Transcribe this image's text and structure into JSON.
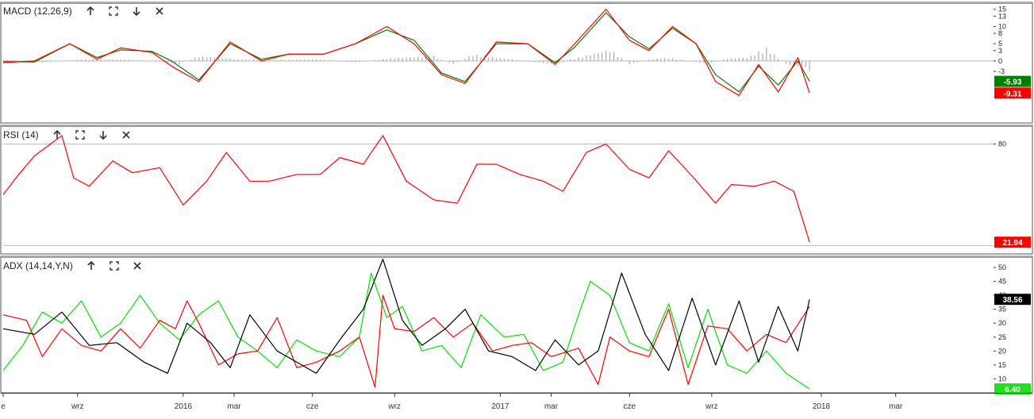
{
  "colors": {
    "macd": "#ff0000",
    "signal": "#008000",
    "histogram": "#aaaaaa",
    "rsi": "#ff0000",
    "adx": "#000000",
    "plus_di": "#ff0000",
    "minus_di": "#00e000",
    "pane_border": "#555555",
    "guide": "#bbbbbb"
  },
  "toolbar_icons": [
    "arrow-up-icon",
    "expand-icon",
    "arrow-down-icon",
    "close-icon"
  ],
  "x_axis": {
    "ticks": [
      {
        "label": "e",
        "t": 0
      },
      {
        "label": "wrz",
        "t": 19
      },
      {
        "label": "2016",
        "t": 46
      },
      {
        "label": "mar",
        "t": 59
      },
      {
        "label": "cze",
        "t": 79
      },
      {
        "label": "wrz",
        "t": 100
      },
      {
        "label": "2017",
        "t": 127
      },
      {
        "label": "mar",
        "t": 140
      },
      {
        "label": "cze",
        "t": 160
      },
      {
        "label": "wrz",
        "t": 181
      },
      {
        "label": "2018",
        "t": 209
      },
      {
        "label": "mar",
        "t": 228
      }
    ],
    "range": [
      0,
      253
    ],
    "last_bar": 206
  },
  "panes": [
    {
      "id": "macd",
      "title": "MACD (12,26,9)",
      "y_range": [
        -18,
        17
      ],
      "y_ticks": [
        15,
        13,
        10,
        8,
        5,
        3,
        0,
        -3
      ],
      "baseline": 0,
      "badges": [
        {
          "value": "-5.93",
          "color": "#008000",
          "y": -5.93
        },
        {
          "value": "-9.31",
          "color": "#ff0000",
          "y": -9.31
        }
      ]
    },
    {
      "id": "rsi",
      "title": "RSI (14)",
      "y_range": [
        15,
        91
      ],
      "y_ticks": [
        80
      ],
      "guides": [
        80,
        20
      ],
      "badges": [
        {
          "value": "21.94",
          "color": "#ff0000",
          "y": 21.94
        }
      ]
    },
    {
      "id": "adx",
      "title": "ADX (14,14,Y,N)",
      "y_range": [
        5,
        54
      ],
      "y_ticks": [
        50,
        45,
        40,
        35,
        30,
        25,
        20,
        15,
        10
      ],
      "badges": [
        {
          "value": "38.56",
          "color": "#000000",
          "y": 38.56
        },
        {
          "value": "6.40",
          "color": "#22dd22",
          "y": 6.4
        }
      ]
    }
  ],
  "chart_data": [
    {
      "type": "line",
      "title": "MACD (12,26,9)",
      "series": [
        {
          "name": "",
          "x": [
            0,
            8,
            17,
            24,
            30,
            38,
            43,
            50,
            58,
            66,
            73,
            82,
            90,
            98,
            105,
            112,
            118,
            126,
            134,
            141,
            146,
            154,
            160,
            165,
            171,
            177,
            182,
            188,
            193,
            198,
            203,
            206
          ],
          "y": [
            -0.5,
            0,
            5,
            0.5,
            3.8,
            2.5,
            -1.5,
            -6,
            5.5,
            0,
            2,
            2,
            5,
            10,
            5,
            -4,
            -6.5,
            5.5,
            5,
            -1,
            5,
            15,
            6,
            3,
            10,
            5,
            -6,
            -10,
            -1,
            -9,
            1,
            -9.31
          ]
        },
        {
          "name": "",
          "x": [
            0,
            8,
            17,
            24,
            30,
            38,
            43,
            50,
            58,
            66,
            73,
            82,
            90,
            98,
            105,
            112,
            118,
            126,
            134,
            141,
            146,
            154,
            160,
            165,
            171,
            177,
            182,
            188,
            193,
            198,
            203,
            206
          ],
          "y": [
            -0.2,
            -0.3,
            5,
            1,
            3.2,
            2.8,
            0,
            -5.5,
            5,
            0.5,
            2,
            2,
            5,
            9,
            6,
            -3.5,
            -6,
            5,
            5,
            -0.5,
            4,
            14,
            7,
            3.5,
            9.5,
            5,
            -4,
            -9,
            -1.5,
            -7,
            0,
            -5.93
          ]
        },
        {
          "name": "",
          "x": [
            0,
            10,
            20,
            30,
            40,
            45,
            50,
            60,
            70,
            80,
            90,
            100,
            110,
            115,
            120,
            130,
            140,
            150,
            155,
            160,
            165,
            170,
            180,
            185,
            190,
            195,
            200,
            206
          ],
          "y": [
            0.5,
            -0.5,
            0.5,
            0.5,
            -0.3,
            -1,
            1.5,
            0.5,
            0.3,
            0.5,
            -0.5,
            1,
            1.5,
            -1,
            2,
            0.5,
            -1,
            2,
            3.5,
            -1,
            0.5,
            1,
            -1,
            0.8,
            1,
            4,
            -1,
            -3
          ]
        }
      ]
    },
    {
      "type": "line",
      "title": "RSI (14)",
      "series": [
        {
          "name": "",
          "x": [
            0,
            4,
            8,
            15,
            18,
            22,
            28,
            33,
            40,
            46,
            52,
            57,
            63,
            68,
            75,
            81,
            86,
            92,
            97,
            103,
            110,
            116,
            121,
            126,
            132,
            138,
            143,
            149,
            154,
            160,
            165,
            170,
            176,
            182,
            186,
            192,
            197,
            202,
            206
          ],
          "y": [
            50,
            62,
            73,
            85,
            60,
            55,
            70,
            63,
            66,
            44,
            58,
            75,
            58,
            58,
            62,
            62,
            72,
            68,
            85,
            58,
            47,
            45,
            68,
            68,
            62,
            58,
            52,
            75,
            80,
            65,
            60,
            76,
            61,
            45,
            56,
            55,
            58,
            52,
            21.94
          ]
        }
      ]
    },
    {
      "type": "line",
      "title": "ADX (14,14,Y,N)",
      "series": [
        {
          "name": "",
          "x": [
            0,
            8,
            15,
            22,
            29,
            36,
            42,
            47,
            53,
            58,
            63,
            70,
            75,
            80,
            86,
            92,
            97,
            102,
            107,
            113,
            118,
            124,
            130,
            136,
            141,
            147,
            152,
            158,
            164,
            170,
            176,
            182,
            188,
            193,
            198,
            203,
            206
          ],
          "y": [
            28,
            26,
            34,
            22,
            23,
            16,
            12,
            30,
            23,
            14,
            33,
            20,
            16,
            12,
            24,
            35,
            53,
            31,
            22,
            28,
            35,
            20,
            18,
            13,
            24,
            15,
            20,
            48,
            26,
            13,
            39,
            15,
            38,
            16,
            36,
            20,
            38.56
          ]
        },
        {
          "name": "",
          "x": [
            0,
            6,
            10,
            15,
            20,
            25,
            30,
            35,
            40,
            44,
            47,
            50,
            55,
            60,
            65,
            70,
            75,
            80,
            86,
            91,
            95,
            97,
            100,
            105,
            110,
            115,
            120,
            125,
            130,
            135,
            140,
            147,
            152,
            155,
            160,
            165,
            170,
            175,
            180,
            185,
            190,
            195,
            200,
            206
          ],
          "y": [
            33,
            31,
            18,
            28,
            22,
            20,
            28,
            21,
            31,
            28,
            38,
            30,
            15,
            19,
            20,
            32,
            14,
            16,
            20,
            25,
            7,
            40,
            28,
            27,
            32,
            25,
            30,
            20,
            22,
            23,
            18,
            21,
            8,
            25,
            20,
            18,
            35,
            8,
            29,
            28,
            20,
            26,
            23,
            36
          ]
        },
        {
          "name": "",
          "x": [
            0,
            5,
            10,
            15,
            20,
            25,
            30,
            35,
            40,
            45,
            50,
            55,
            60,
            65,
            70,
            75,
            80,
            86,
            91,
            94,
            98,
            102,
            107,
            112,
            117,
            122,
            128,
            133,
            138,
            143,
            147,
            150,
            155,
            160,
            165,
            170,
            175,
            180,
            185,
            190,
            195,
            200,
            206
          ],
          "y": [
            13,
            22,
            34,
            30,
            38,
            25,
            30,
            40,
            30,
            24,
            33,
            38,
            25,
            20,
            14,
            24,
            20,
            18,
            25,
            48,
            32,
            36,
            20,
            22,
            14,
            33,
            25,
            26,
            13,
            16,
            33,
            45,
            40,
            23,
            20,
            37,
            14,
            35,
            15,
            12,
            20,
            12,
            6.4
          ]
        }
      ]
    }
  ]
}
